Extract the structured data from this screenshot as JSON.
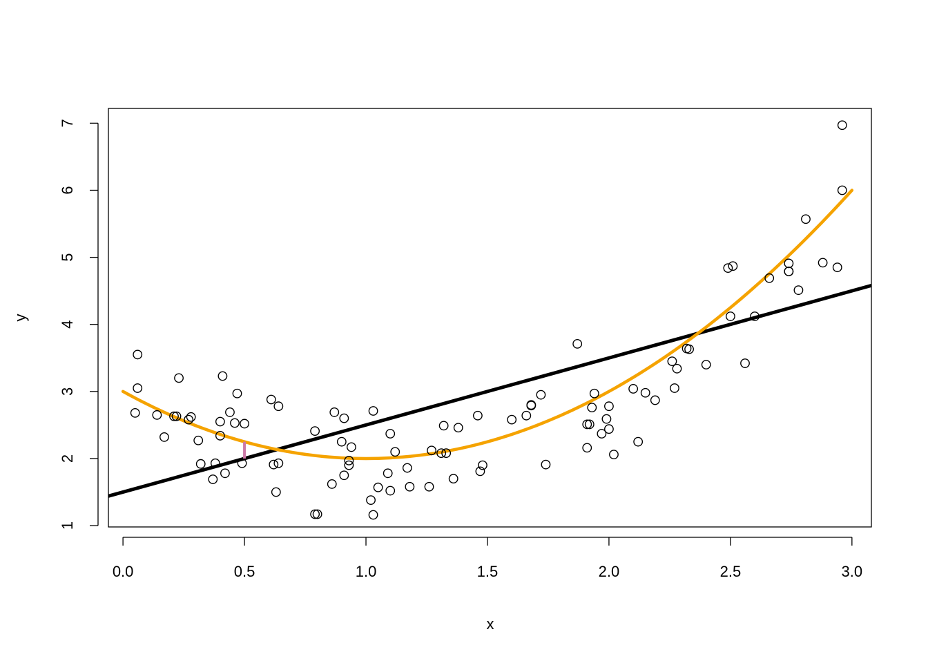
{
  "chart_data": {
    "type": "scatter",
    "title": "",
    "xlabel": "x",
    "ylabel": "y",
    "xlim": [
      -0.06,
      3.08
    ],
    "ylim": [
      0.98,
      7.22
    ],
    "x_ticks": [
      0.0,
      0.5,
      1.0,
      1.5,
      2.0,
      2.5,
      3.0
    ],
    "x_tick_labels": [
      "0.0",
      "0.5",
      "1.0",
      "1.5",
      "2.0",
      "2.5",
      "3.0"
    ],
    "y_ticks": [
      1,
      2,
      3,
      4,
      5,
      6,
      7
    ],
    "y_tick_labels": [
      "1",
      "2",
      "3",
      "4",
      "5",
      "6",
      "7"
    ],
    "grid": false,
    "legend": "none",
    "points": {
      "x": [
        0.05,
        0.06,
        0.06,
        0.14,
        0.17,
        0.21,
        0.22,
        0.23,
        0.27,
        0.28,
        0.31,
        0.32,
        0.37,
        0.38,
        0.4,
        0.4,
        0.41,
        0.42,
        0.44,
        0.46,
        0.47,
        0.49,
        0.5,
        0.61,
        0.62,
        0.63,
        0.64,
        0.64,
        0.79,
        0.79,
        0.8,
        0.86,
        0.87,
        0.9,
        0.91,
        0.91,
        0.93,
        0.93,
        0.94,
        1.02,
        1.03,
        1.03,
        1.05,
        1.09,
        1.1,
        1.1,
        1.12,
        1.17,
        1.18,
        1.26,
        1.27,
        1.31,
        1.32,
        1.33,
        1.36,
        1.38,
        1.46,
        1.47,
        1.48,
        1.6,
        1.66,
        1.68,
        1.68,
        1.72,
        1.74,
        1.87,
        1.91,
        1.91,
        1.92,
        1.93,
        1.94,
        1.97,
        1.99,
        2.0,
        2.0,
        2.02,
        2.1,
        2.12,
        2.15,
        2.19,
        2.26,
        2.27,
        2.28,
        2.32,
        2.33,
        2.4,
        2.49,
        2.5,
        2.51,
        2.56,
        2.6,
        2.66,
        2.74,
        2.74,
        2.74,
        2.78,
        2.81,
        2.88,
        2.94,
        2.96,
        2.96
      ],
      "y": [
        2.68,
        3.55,
        3.05,
        2.65,
        2.32,
        2.63,
        2.63,
        3.2,
        2.58,
        2.62,
        2.27,
        1.92,
        1.69,
        1.93,
        2.55,
        2.34,
        3.23,
        1.78,
        2.69,
        2.53,
        2.97,
        1.93,
        2.52,
        2.88,
        1.91,
        1.5,
        1.93,
        2.78,
        2.41,
        1.17,
        1.17,
        1.62,
        2.69,
        2.25,
        2.6,
        1.75,
        1.9,
        1.97,
        2.17,
        1.38,
        1.16,
        2.71,
        1.57,
        1.78,
        2.37,
        1.52,
        2.1,
        1.86,
        1.58,
        1.58,
        2.12,
        2.08,
        2.49,
        2.08,
        1.7,
        2.46,
        2.64,
        1.81,
        1.9,
        2.58,
        2.64,
        2.79,
        2.8,
        2.95,
        1.91,
        3.71,
        2.16,
        2.51,
        2.51,
        2.76,
        2.97,
        2.37,
        2.59,
        2.78,
        2.44,
        2.06,
        3.04,
        2.25,
        2.98,
        2.87,
        3.45,
        3.05,
        3.34,
        3.64,
        3.63,
        3.4,
        4.84,
        4.12,
        4.87,
        3.42,
        4.12,
        4.69,
        4.91,
        4.79,
        4.79,
        4.51,
        5.57,
        4.92,
        4.85,
        6.97,
        6.0
      ]
    },
    "series": [
      {
        "type": "line",
        "color": "#000000",
        "intercept": 1.5,
        "slope": 1.0,
        "x_range": [
          -0.06,
          3.08
        ]
      },
      {
        "type": "curve",
        "color": "#f5a300",
        "formula": "(x-1)^2+2",
        "x_range": [
          0.0,
          3.0
        ]
      },
      {
        "type": "segment",
        "color": "#cc79a7",
        "x": 0.5,
        "y_from": 2.0,
        "y_to": 2.25
      }
    ]
  }
}
